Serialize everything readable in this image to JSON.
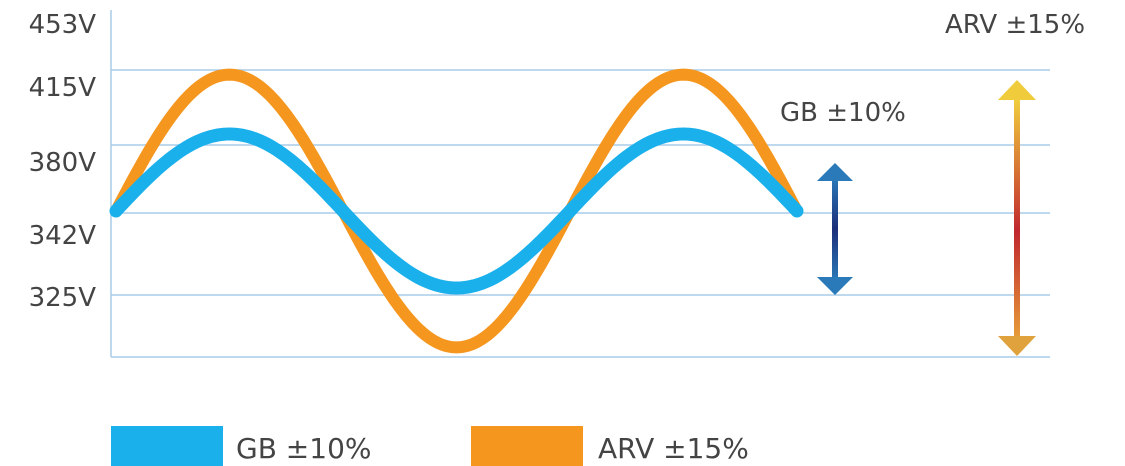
{
  "chart_data": {
    "type": "line",
    "y_ticks": [
      "453V",
      "415V",
      "380V",
      "342V",
      "325V"
    ],
    "y_tick_values": [
      453,
      415,
      380,
      342,
      325
    ],
    "series": [
      {
        "name": "GB ±10%",
        "color": "#1ab0ec",
        "base": 350,
        "amplitude": 35,
        "cycles": 1.5
      },
      {
        "name": "ARV ±15%",
        "color": "#f5961f",
        "base": 350,
        "amplitude": 62,
        "cycles": 1.5
      }
    ],
    "annotations": [
      {
        "text": "GB ±10%",
        "arrow_colors": [
          "#2a79b8",
          "#1c2f7a",
          "#2a79b8"
        ]
      },
      {
        "text": "ARV ±15%",
        "arrow_colors": [
          "#f2d23e",
          "#c0272d",
          "#e8a13a"
        ]
      }
    ],
    "grid_color": "#a9cbe8",
    "legend": {
      "placement": "bottom",
      "items": [
        {
          "label": "GB ±10%",
          "color": "#1ab0ec"
        },
        {
          "label": "ARV ±15%",
          "color": "#f5961f"
        }
      ]
    }
  }
}
